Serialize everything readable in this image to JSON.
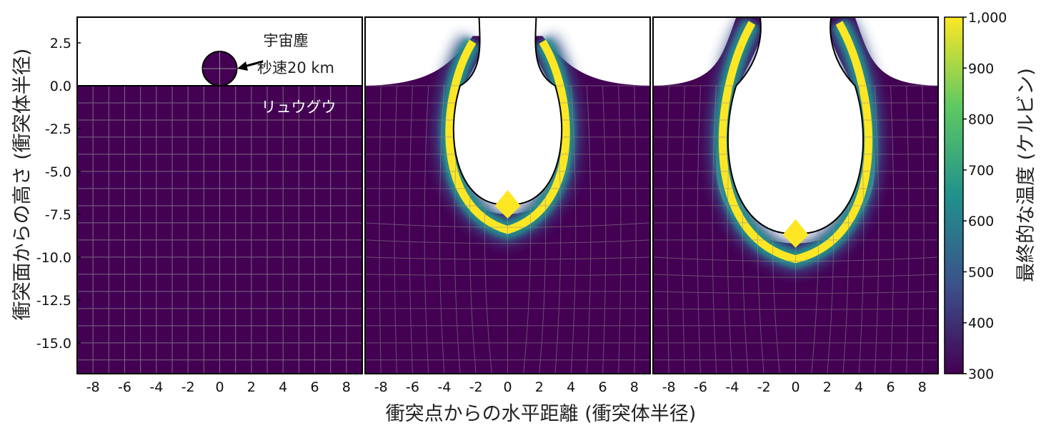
{
  "chart_data": {
    "type": "heatmap",
    "panels": 3,
    "xlabel": "衝突点からの水平距離 (衝突体半径)",
    "ylabel": "衝突面からの高さ (衝突体半径)",
    "xlim": [
      -9,
      9
    ],
    "ylim": [
      -16.8,
      4.0
    ],
    "x_ticks": [
      -8,
      -6,
      -4,
      -2,
      0,
      2,
      4,
      6,
      8
    ],
    "x_tick_labels": [
      "-8",
      "-6",
      "-4",
      "-2",
      "0",
      "2",
      "4",
      "6",
      "8"
    ],
    "y_ticks": [
      2.5,
      0.0,
      -2.5,
      -5.0,
      -7.5,
      -10.0,
      -12.5,
      -15.0
    ],
    "y_tick_labels": [
      "2.5",
      "0.0",
      "-2.5",
      "-5.0",
      "-7.5",
      "-10.0",
      "-12.5",
      "-15.0"
    ],
    "colorbar": {
      "label": "最終的な温度 (ケルビン)",
      "range": [
        300,
        1000
      ],
      "ticks": [
        300,
        400,
        500,
        600,
        700,
        800,
        900,
        1000
      ],
      "tick_labels": [
        "300",
        "400",
        "500",
        "600",
        "700",
        "800",
        "900",
        "1,000"
      ],
      "colormap": [
        "#440154",
        "#3b528b",
        "#21918c",
        "#5ec962",
        "#fde725"
      ]
    },
    "annotations": {
      "projectile_label": "宇宙塵",
      "speed_label": "秒速20 km",
      "target_label": "リュウグウ"
    },
    "series": [
      {
        "panel": 1,
        "projectile_center": [
          0,
          1.0
        ],
        "projectile_radius": 1.0
      },
      {
        "panel": 2,
        "crater_depth": -7.5,
        "crater_half_width": 4.0,
        "rim_height": 2.9
      },
      {
        "panel": 3,
        "crater_depth": -9.2,
        "crater_half_width": 5.0,
        "rim_height": 4.0
      }
    ]
  }
}
